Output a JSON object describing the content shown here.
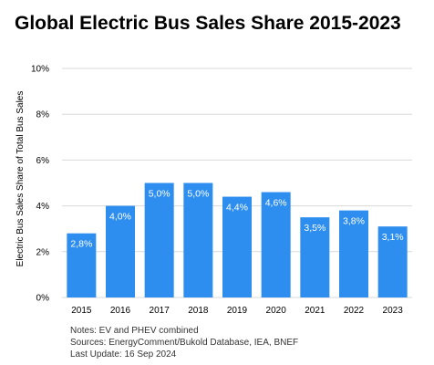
{
  "colors": {
    "bar": "#2d8ef0",
    "grid": "#d9d9d9",
    "text": "#000000",
    "bar_label": "#ffffff"
  },
  "chart_data": {
    "type": "bar",
    "title": "Global Electric Bus Sales Share 2015-2023",
    "xlabel": "",
    "ylabel": "Electric Bus Sales Share of Total Bus Sales",
    "categories": [
      "2015",
      "2016",
      "2017",
      "2018",
      "2019",
      "2020",
      "2021",
      "2022",
      "2023"
    ],
    "values": [
      2.8,
      4.0,
      5.0,
      5.0,
      4.4,
      4.6,
      3.5,
      3.8,
      3.1
    ],
    "data_labels": [
      "2,8%",
      "4,0%",
      "5,0%",
      "5,0%",
      "4,4%",
      "4,6%",
      "3,5%",
      "3,8%",
      "3,1%"
    ],
    "ylim": [
      0,
      10
    ],
    "yticks": [
      0,
      2,
      4,
      6,
      8,
      10
    ],
    "ytick_labels": [
      "0%",
      "2%",
      "4%",
      "6%",
      "8%",
      "10%"
    ],
    "grid": true
  },
  "notes": {
    "line1": "Notes: EV and PHEV combined",
    "line2": "Sources: EnergyComment/Bukold Database, IEA, BNEF",
    "line3": "Last Update: 16 Sep 2024"
  }
}
